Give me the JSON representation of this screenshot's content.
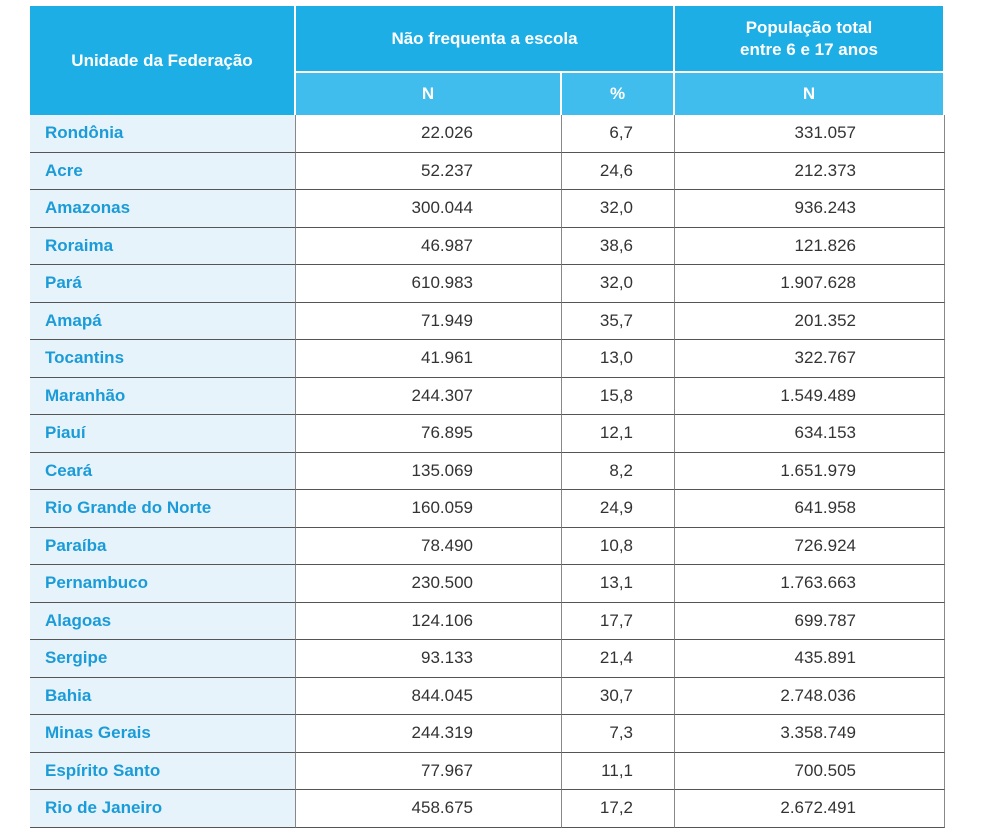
{
  "header": {
    "unit": "Unidade da Federação",
    "group1": "Não frequenta a escola",
    "group2": [
      "População total",
      "entre 6 e 17 anos"
    ],
    "sub": [
      "N",
      "%",
      "N"
    ]
  },
  "table": {
    "rows": [
      [
        "Rondônia",
        "22.026",
        "6,7",
        "331.057"
      ],
      [
        "Acre",
        "52.237",
        "24,6",
        "212.373"
      ],
      [
        "Amazonas",
        "300.044",
        "32,0",
        "936.243"
      ],
      [
        "Roraima",
        "46.987",
        "38,6",
        "121.826"
      ],
      [
        "Pará",
        "610.983",
        "32,0",
        "1.907.628"
      ],
      [
        "Amapá",
        "71.949",
        "35,7",
        "201.352"
      ],
      [
        "Tocantins",
        "41.961",
        "13,0",
        "322.767"
      ],
      [
        "Maranhão",
        "244.307",
        "15,8",
        "1.549.489"
      ],
      [
        "Piauí",
        "76.895",
        "12,1",
        "634.153"
      ],
      [
        "Ceará",
        "135.069",
        "8,2",
        "1.651.979"
      ],
      [
        "Rio Grande do Norte",
        "160.059",
        "24,9",
        "641.958"
      ],
      [
        "Paraíba",
        "78.490",
        "10,8",
        "726.924"
      ],
      [
        "Pernambuco",
        "230.500",
        "13,1",
        "1.763.663"
      ],
      [
        "Alagoas",
        "124.106",
        "17,7",
        "699.787"
      ],
      [
        "Sergipe",
        "93.133",
        "21,4",
        "435.891"
      ],
      [
        "Bahia",
        "844.045",
        "30,7",
        "2.748.036"
      ],
      [
        "Minas Gerais",
        "244.319",
        "7,3",
        "3.358.749"
      ],
      [
        "Espírito Santo",
        "77.967",
        "11,1",
        "700.505"
      ],
      [
        "Rio de Janeiro",
        "458.675",
        "17,2",
        "2.672.491"
      ]
    ]
  }
}
